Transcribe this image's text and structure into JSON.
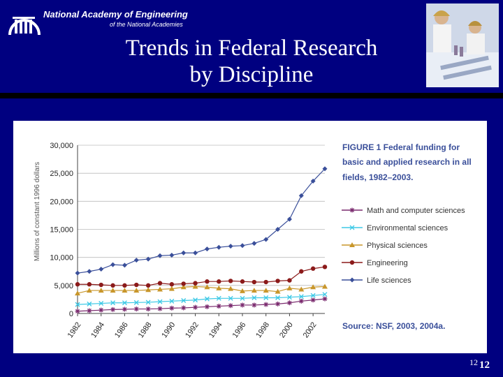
{
  "header": {
    "org_name": "National Academy of Engineering",
    "org_sub": "of the National Academies",
    "title_line1": "Trends in Federal Research",
    "title_line2": "by Discipline"
  },
  "slide_number": "12",
  "slide_number_large": "12",
  "figure": {
    "caption_line1": "FIGURE 1    Federal funding for",
    "caption_line2": "basic and applied research in all",
    "caption_line3": "fields, 1982–2003.",
    "source": "Source:  NSF, 2003, 2004a."
  },
  "chart_data": {
    "type": "line",
    "title": "",
    "xlabel": "",
    "ylabel": "Millions of constant 1996 dollars",
    "x": [
      1982,
      1983,
      1984,
      1985,
      1986,
      1987,
      1988,
      1989,
      1990,
      1991,
      1992,
      1993,
      1994,
      1995,
      1996,
      1997,
      1998,
      1999,
      2000,
      2001,
      2002,
      2003
    ],
    "x_tick_labels": [
      "1982",
      "1984",
      "1986",
      "1988",
      "1990",
      "1992",
      "1994",
      "1996",
      "1998",
      "2000",
      "2002"
    ],
    "x_ticks": [
      1982,
      1984,
      1986,
      1988,
      1990,
      1992,
      1994,
      1996,
      1998,
      2000,
      2002
    ],
    "y_ticks": [
      0,
      5000,
      10000,
      15000,
      20000,
      25000,
      30000
    ],
    "y_tick_labels": [
      "0",
      "5,000",
      "10,000",
      "15,000",
      "20,000",
      "25,000",
      "30,000"
    ],
    "ylim": [
      0,
      30000
    ],
    "xlim": [
      1982,
      2003
    ],
    "legend_position": "right",
    "series": [
      {
        "name": "Math and computer sciences",
        "marker": "star",
        "color": "#7a2a6e",
        "values": [
          400,
          500,
          600,
          700,
          750,
          800,
          800,
          850,
          950,
          1000,
          1100,
          1200,
          1300,
          1400,
          1500,
          1500,
          1600,
          1700,
          1900,
          2200,
          2400,
          2600
        ]
      },
      {
        "name": "Environmental sciences",
        "marker": "x",
        "color": "#3ec9e6",
        "values": [
          1600,
          1700,
          1800,
          1900,
          1900,
          1950,
          2000,
          2100,
          2200,
          2300,
          2400,
          2600,
          2700,
          2700,
          2700,
          2800,
          2800,
          2800,
          2900,
          3000,
          3200,
          3400
        ]
      },
      {
        "name": "Physical sciences",
        "marker": "triangle",
        "color": "#c8962a",
        "values": [
          3600,
          4100,
          4100,
          4100,
          4100,
          4100,
          4200,
          4300,
          4400,
          4700,
          4800,
          4700,
          4500,
          4400,
          4000,
          4100,
          4100,
          3900,
          4500,
          4300,
          4700,
          4800
        ]
      },
      {
        "name": "Engineering",
        "marker": "circle",
        "color": "#8b1a1a",
        "values": [
          5200,
          5200,
          5100,
          5000,
          5000,
          5100,
          5000,
          5400,
          5200,
          5300,
          5400,
          5700,
          5700,
          5800,
          5700,
          5600,
          5600,
          5800,
          5900,
          7500,
          8000,
          8300
        ]
      },
      {
        "name": "Life sciences",
        "marker": "diamond",
        "color": "#3a4f9a",
        "values": [
          7200,
          7500,
          7900,
          8700,
          8600,
          9500,
          9700,
          10300,
          10400,
          10800,
          10800,
          11500,
          11800,
          12000,
          12100,
          12500,
          13200,
          15000,
          16800,
          21000,
          23600,
          25800
        ]
      }
    ]
  }
}
